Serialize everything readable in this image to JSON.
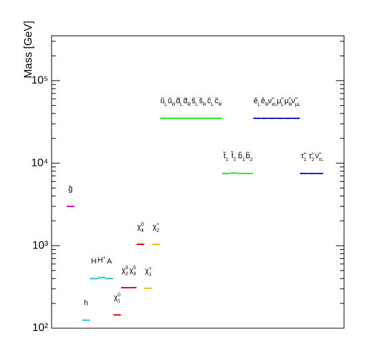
{
  "chart_data": {
    "type": "spectrum",
    "ylabel": "Mass [GeV]",
    "log_y": true,
    "ylim": [
      100,
      350000
    ],
    "yticks": [
      {
        "value": 100,
        "label": "10²"
      },
      {
        "value": 1000,
        "label": "10³"
      },
      {
        "value": 10000,
        "label": "10⁴"
      },
      {
        "value": 100000,
        "label": "10⁵"
      }
    ],
    "minor_yticks": [
      200,
      300,
      400,
      500,
      600,
      700,
      800,
      900,
      2000,
      3000,
      4000,
      5000,
      6000,
      7000,
      8000,
      9000,
      20000,
      30000,
      40000,
      50000,
      60000,
      70000,
      80000,
      90000,
      200000,
      300000
    ],
    "labels": [
      {
        "text": "g̃"
      },
      {
        "text": "h"
      },
      {
        "text": "H"
      },
      {
        "text": "H",
        "sup": "+"
      },
      {
        "text": "A"
      },
      {
        "text": "χ",
        "sup": "0",
        "sub": "1"
      },
      {
        "text": "χ",
        "sup": "0",
        "sub": "2"
      },
      {
        "text": "χ",
        "sup": "0",
        "sub": "3"
      },
      {
        "text": "χ",
        "sup": "0",
        "sub": "4"
      },
      {
        "text": "χ",
        "sup": "+",
        "sub": "1"
      },
      {
        "text": "χ",
        "sup": "+",
        "sub": "2"
      },
      {
        "text": "ũ",
        "sub": "L"
      },
      {
        "text": "ũ",
        "sub": "R"
      },
      {
        "text": "d̃",
        "sub": "L"
      },
      {
        "text": "d̃",
        "sub": "R"
      },
      {
        "text": "s̃",
        "sub": "L"
      },
      {
        "text": "s̃",
        "sub": "R"
      },
      {
        "text": "c̃",
        "sub": "L"
      },
      {
        "text": "c̃",
        "sub": "R"
      },
      {
        "text": "t̃",
        "sub": "1"
      },
      {
        "text": "t̃",
        "sub": "2"
      },
      {
        "text": "b̃",
        "sub": "1"
      },
      {
        "text": "b̃",
        "sub": "2"
      },
      {
        "text": "ẽ",
        "sub": "L"
      },
      {
        "text": "ẽ",
        "sub": "R"
      },
      {
        "text": "ν̃",
        "sub": "eL"
      },
      {
        "text": "μ̃",
        "sub": "L"
      },
      {
        "text": "μ̃",
        "sub": "R"
      },
      {
        "text": "ν̃",
        "sub": "μL"
      },
      {
        "text": "τ̃",
        "sub": "1"
      },
      {
        "text": "τ̃",
        "sub": "2"
      },
      {
        "text": "ν̃",
        "sub": "τL"
      }
    ],
    "values": [
      3000,
      125,
      400,
      410,
      400,
      145,
      310,
      310,
      1040,
      305,
      1040,
      35000,
      35000,
      35000,
      35000,
      35000,
      35000,
      35000,
      35000,
      7500,
      7600,
      7500,
      7500,
      35000,
      35000,
      35000,
      35000,
      35000,
      35000,
      7500,
      7500,
      7500
    ],
    "colors": [
      "#d000d0",
      "#20c0c8",
      "#20c0c8",
      "#20c0c8",
      "#20c0c8",
      "#e00000",
      "#e00000",
      "#e00000",
      "#e00000",
      "#f0c000",
      "#f0c000",
      "#20e820",
      "#20e820",
      "#20e820",
      "#20e820",
      "#20e820",
      "#20e820",
      "#20e820",
      "#20e820",
      "#20e820",
      "#20e820",
      "#20e820",
      "#20e820",
      "#1010c8",
      "#1010c8",
      "#1010c8",
      "#1010c8",
      "#1010c8",
      "#1010c8",
      "#1010c8",
      "#1010c8",
      "#1010c8"
    ]
  }
}
